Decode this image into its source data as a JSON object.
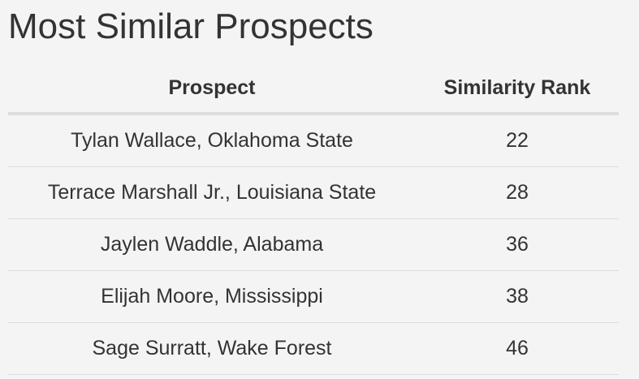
{
  "header": {
    "title": "Most Similar Prospects"
  },
  "table": {
    "columns": [
      "Prospect",
      "Similarity Rank"
    ],
    "rows": [
      [
        "Tylan Wallace, Oklahoma State",
        "22"
      ],
      [
        "Terrace Marshall Jr., Louisiana State",
        "28"
      ],
      [
        "Jaylen Waddle, Alabama",
        "36"
      ],
      [
        "Elijah Moore, Mississippi",
        "38"
      ],
      [
        "Sage Surratt, Wake Forest",
        "46"
      ]
    ]
  }
}
